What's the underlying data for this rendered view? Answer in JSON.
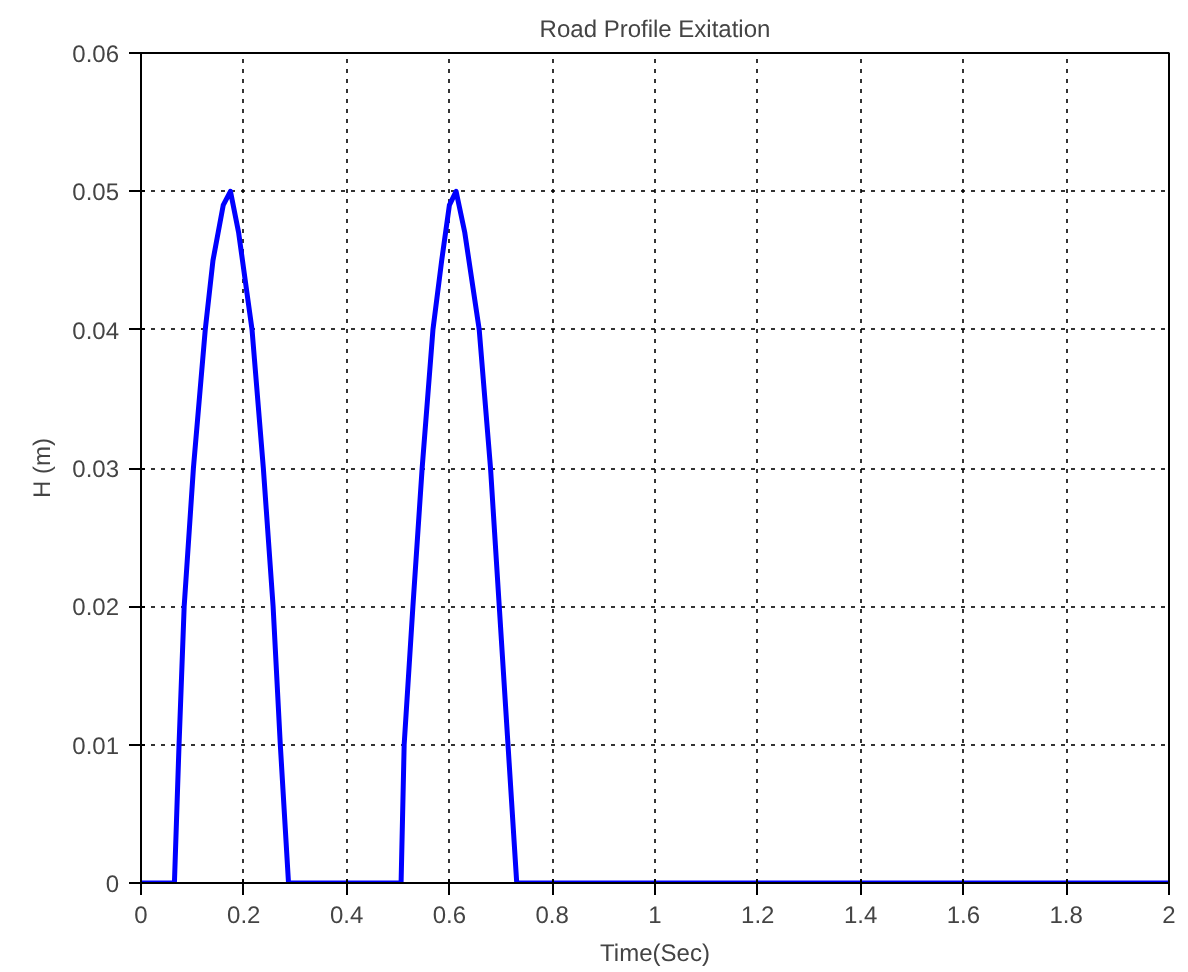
{
  "chart_data": {
    "type": "line",
    "title": "Road Profile Exitation",
    "xlabel": "Time(Sec)",
    "ylabel": "H (m)",
    "xlim": [
      0,
      2
    ],
    "ylim": [
      0,
      0.06
    ],
    "xticks": [
      0,
      0.2,
      0.4,
      0.6,
      0.8,
      1,
      1.2,
      1.4,
      1.6,
      1.8,
      2
    ],
    "yticks": [
      0,
      0.01,
      0.02,
      0.03,
      0.04,
      0.05,
      0.06
    ],
    "grid": true,
    "series": [
      {
        "color": "#0000ff",
        "x": [
          0,
          0.065,
          0.074,
          0.084,
          0.102,
          0.125,
          0.14,
          0.16,
          0.174,
          0.19,
          0.216,
          0.238,
          0.257,
          0.271,
          0.287,
          0.506,
          0.512,
          0.529,
          0.547,
          0.568,
          0.585,
          0.6,
          0.613,
          0.63,
          0.658,
          0.68,
          0.697,
          0.714,
          0.731,
          2
        ],
        "values": [
          0,
          0,
          0.01,
          0.02,
          0.03,
          0.04,
          0.045,
          0.049,
          0.05,
          0.047,
          0.04,
          0.03,
          0.02,
          0.01,
          0,
          0,
          0.01,
          0.02,
          0.03,
          0.04,
          0.045,
          0.049,
          0.05,
          0.047,
          0.04,
          0.03,
          0.02,
          0.01,
          0,
          0
        ]
      }
    ]
  }
}
